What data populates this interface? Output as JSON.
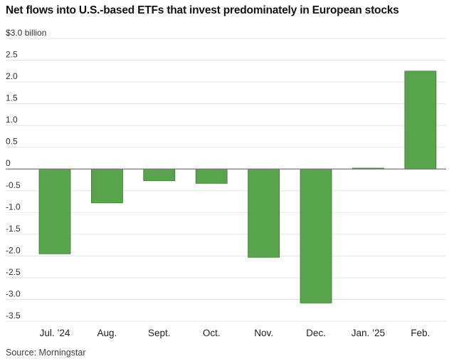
{
  "chart_data": {
    "type": "bar",
    "title": "Net flows into U.S.-based ETFs that invest predominately in European stocks",
    "unit_label": "$3.0 billion",
    "categories": [
      "Jul. ’24",
      "Aug.",
      "Sept.",
      "Oct.",
      "Nov.",
      "Dec.",
      "Jan. ’25",
      "Feb."
    ],
    "values": [
      -1.95,
      -0.78,
      -0.27,
      -0.33,
      -2.03,
      -3.08,
      0.02,
      2.25
    ],
    "yticks": [
      {
        "value": 3.0,
        "label": "$3.0 billion"
      },
      {
        "value": 2.5,
        "label": "2.5"
      },
      {
        "value": 2.0,
        "label": "2.0"
      },
      {
        "value": 1.5,
        "label": "1.5"
      },
      {
        "value": 1.0,
        "label": "1.0"
      },
      {
        "value": 0.5,
        "label": "0.5"
      },
      {
        "value": 0,
        "label": "0"
      },
      {
        "value": -0.5,
        "label": "-0.5"
      },
      {
        "value": -1.0,
        "label": "-1.0"
      },
      {
        "value": -1.5,
        "label": "-1.5"
      },
      {
        "value": -2.0,
        "label": "-2.0"
      },
      {
        "value": -2.5,
        "label": "-2.5"
      },
      {
        "value": -3.0,
        "label": "-3.0"
      },
      {
        "value": -3.5,
        "label": "-3.5"
      }
    ],
    "ylim": [
      -3.5,
      3.0
    ],
    "bar_color": "#58a44b",
    "source": "Source: Morningstar"
  }
}
